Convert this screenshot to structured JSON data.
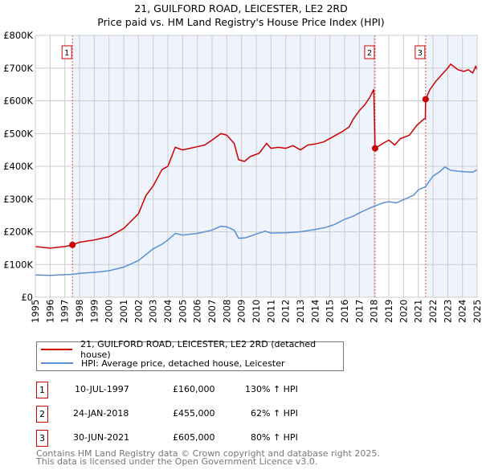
{
  "title": "21, GUILFORD ROAD, LEICESTER, LE2 2RD",
  "subtitle": "Price paid vs. HM Land Registry's House Price Index (HPI)",
  "chart_data": {
    "type": "line",
    "xlim": [
      1995,
      2025
    ],
    "ylim": [
      0,
      800000
    ],
    "yticks": [
      {
        "v": 0,
        "label": "£0"
      },
      {
        "v": 100000,
        "label": "£100K"
      },
      {
        "v": 200000,
        "label": "£200K"
      },
      {
        "v": 300000,
        "label": "£300K"
      },
      {
        "v": 400000,
        "label": "£400K"
      },
      {
        "v": 500000,
        "label": "£500K"
      },
      {
        "v": 600000,
        "label": "£600K"
      },
      {
        "v": 700000,
        "label": "£700K"
      },
      {
        "v": 800000,
        "label": "£800K"
      }
    ],
    "xticks": [
      "1995",
      "1996",
      "1997",
      "1998",
      "1999",
      "2000",
      "2001",
      "2002",
      "2003",
      "2004",
      "2005",
      "2006",
      "2007",
      "2008",
      "2009",
      "2010",
      "2011",
      "2012",
      "2013",
      "2014",
      "2015",
      "2016",
      "2017",
      "2018",
      "2019",
      "2020",
      "2021",
      "2022",
      "2023",
      "2024",
      "2025"
    ],
    "series": [
      {
        "name": "21, GUILFORD ROAD, LEICESTER, LE2 2RD (detached house)",
        "color": "#cc0000",
        "points": [
          [
            1995,
            155000
          ],
          [
            1996,
            150000
          ],
          [
            1997,
            155000
          ],
          [
            1997.52,
            160000
          ],
          [
            1998,
            168000
          ],
          [
            1999,
            175000
          ],
          [
            2000,
            185000
          ],
          [
            2001,
            210000
          ],
          [
            2002,
            255000
          ],
          [
            2002.5,
            310000
          ],
          [
            2003,
            340000
          ],
          [
            2003.6,
            390000
          ],
          [
            2004,
            400000
          ],
          [
            2004.5,
            458000
          ],
          [
            2005,
            450000
          ],
          [
            2005.5,
            455000
          ],
          [
            2006,
            460000
          ],
          [
            2006.5,
            465000
          ],
          [
            2007,
            480000
          ],
          [
            2007.6,
            500000
          ],
          [
            2008,
            495000
          ],
          [
            2008.5,
            470000
          ],
          [
            2008.8,
            420000
          ],
          [
            2009.2,
            415000
          ],
          [
            2009.6,
            430000
          ],
          [
            2010.2,
            440000
          ],
          [
            2010.7,
            470000
          ],
          [
            2011,
            455000
          ],
          [
            2011.5,
            458000
          ],
          [
            2012,
            455000
          ],
          [
            2012.5,
            463000
          ],
          [
            2013,
            450000
          ],
          [
            2013.5,
            465000
          ],
          [
            2014,
            468000
          ],
          [
            2014.6,
            475000
          ],
          [
            2015.2,
            490000
          ],
          [
            2015.8,
            505000
          ],
          [
            2016.3,
            520000
          ],
          [
            2016.6,
            545000
          ],
          [
            2017,
            570000
          ],
          [
            2017.4,
            590000
          ],
          [
            2017.7,
            610000
          ],
          [
            2017.98,
            635000
          ],
          [
            2018.07,
            455000
          ],
          [
            2018.6,
            470000
          ],
          [
            2019,
            480000
          ],
          [
            2019.4,
            465000
          ],
          [
            2019.8,
            485000
          ],
          [
            2020.4,
            495000
          ],
          [
            2020.9,
            525000
          ],
          [
            2021.4,
            545000
          ],
          [
            2021.48,
            545000
          ],
          [
            2021.5,
            605000
          ],
          [
            2021.8,
            635000
          ],
          [
            2022.2,
            660000
          ],
          [
            2022.6,
            680000
          ],
          [
            2023,
            700000
          ],
          [
            2023.2,
            712000
          ],
          [
            2023.7,
            695000
          ],
          [
            2024.1,
            690000
          ],
          [
            2024.4,
            695000
          ],
          [
            2024.7,
            685000
          ],
          [
            2024.9,
            705000
          ],
          [
            2025,
            695000
          ]
        ]
      },
      {
        "name": "HPI: Average price, detached house, Leicester",
        "color": "#5b8fd4",
        "points": [
          [
            1995,
            68000
          ],
          [
            1996,
            67000
          ],
          [
            1997,
            69000
          ],
          [
            1997.52,
            70000
          ],
          [
            1998,
            73000
          ],
          [
            1999,
            76000
          ],
          [
            2000,
            81000
          ],
          [
            2001,
            92000
          ],
          [
            2002,
            112000
          ],
          [
            2002.5,
            130000
          ],
          [
            2003,
            148000
          ],
          [
            2003.6,
            162000
          ],
          [
            2004,
            175000
          ],
          [
            2004.5,
            195000
          ],
          [
            2005,
            190000
          ],
          [
            2006,
            195000
          ],
          [
            2007,
            205000
          ],
          [
            2007.6,
            217000
          ],
          [
            2008,
            215000
          ],
          [
            2008.5,
            205000
          ],
          [
            2008.8,
            180000
          ],
          [
            2009.3,
            182000
          ],
          [
            2010,
            193000
          ],
          [
            2010.6,
            202000
          ],
          [
            2011,
            196000
          ],
          [
            2012,
            197000
          ],
          [
            2013,
            200000
          ],
          [
            2014,
            207000
          ],
          [
            2014.7,
            213000
          ],
          [
            2015.3,
            222000
          ],
          [
            2016,
            238000
          ],
          [
            2016.6,
            248000
          ],
          [
            2017.2,
            262000
          ],
          [
            2018,
            278000
          ],
          [
            2018.6,
            288000
          ],
          [
            2019,
            292000
          ],
          [
            2019.5,
            288000
          ],
          [
            2020,
            298000
          ],
          [
            2020.7,
            312000
          ],
          [
            2021,
            328000
          ],
          [
            2021.5,
            338000
          ],
          [
            2022,
            370000
          ],
          [
            2022.5,
            385000
          ],
          [
            2022.8,
            398000
          ],
          [
            2023.2,
            388000
          ],
          [
            2023.7,
            385000
          ],
          [
            2024.2,
            383000
          ],
          [
            2024.7,
            382000
          ],
          [
            2025,
            390000
          ]
        ]
      }
    ],
    "sales": [
      {
        "n": "1",
        "x": 1997.52,
        "y": 160000
      },
      {
        "n": "2",
        "x": 2018.07,
        "y": 455000
      },
      {
        "n": "3",
        "x": 2021.5,
        "y": 605000
      }
    ],
    "shaded": [
      [
        1997.52,
        2018.07
      ],
      [
        2021.5,
        2025
      ]
    ]
  },
  "legend": {
    "red": "21, GUILFORD ROAD, LEICESTER, LE2 2RD (detached house)",
    "blue": "HPI: Average price, detached house, Leicester"
  },
  "transactions": [
    {
      "n": "1",
      "date": "10-JUL-1997",
      "price": "£160,000",
      "hpi": "130% ↑ HPI"
    },
    {
      "n": "2",
      "date": "24-JAN-2018",
      "price": "£455,000",
      "hpi": "62% ↑ HPI"
    },
    {
      "n": "3",
      "date": "30-JUN-2021",
      "price": "£605,000",
      "hpi": "80% ↑ HPI"
    }
  ],
  "footer": {
    "line1": "Contains HM Land Registry data © Crown copyright and database right 2025.",
    "line2": "This data is licensed under the Open Government Licence v3.0."
  }
}
